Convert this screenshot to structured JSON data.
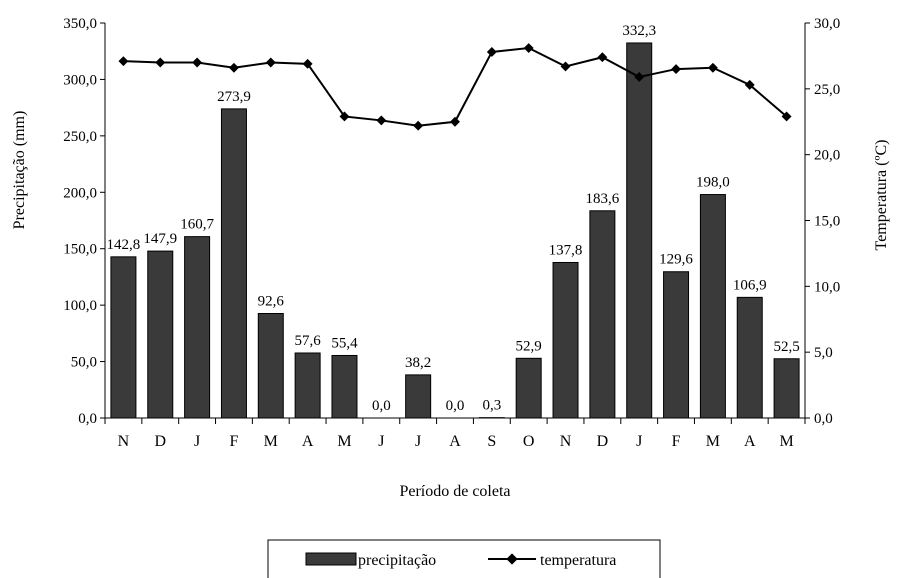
{
  "chart_data": {
    "type": "bar",
    "categories": [
      "N",
      "D",
      "J",
      "F",
      "M",
      "A",
      "M",
      "J",
      "J",
      "A",
      "S",
      "O",
      "N",
      "D",
      "J",
      "F",
      "M",
      "A",
      "M"
    ],
    "series": [
      {
        "name": "precipitação",
        "type": "bar",
        "axis": "left",
        "values": [
          142.8,
          147.9,
          160.7,
          273.9,
          92.6,
          57.6,
          55.4,
          0.0,
          38.2,
          0.0,
          0.3,
          52.9,
          137.8,
          183.6,
          332.3,
          129.6,
          198.0,
          106.9,
          52.5
        ],
        "labels": [
          "142,8",
          "147,9",
          "160,7",
          "273,9",
          "92,6",
          "57,6",
          "55,4",
          "0,0",
          "38,2",
          "0,0",
          "0,3",
          "52,9",
          "137,8",
          "183,6",
          "332,3",
          "129,6",
          "198,0",
          "106,9",
          "52,5"
        ]
      },
      {
        "name": "temperatura",
        "type": "line",
        "axis": "right",
        "values": [
          27.1,
          27.0,
          27.0,
          26.6,
          27.0,
          26.9,
          22.9,
          22.6,
          22.2,
          22.5,
          27.8,
          28.1,
          26.7,
          27.4,
          25.9,
          26.5,
          26.6,
          25.3,
          22.9
        ]
      }
    ],
    "xlabel": "Período de coleta",
    "ylabel": "Precipitação (mm)",
    "y2label": "Temperatura (ºC)",
    "ylim": [
      0,
      350
    ],
    "y2lim": [
      0,
      30
    ],
    "yticks": [
      "0,0",
      "50,0",
      "100,0",
      "150,0",
      "200,0",
      "250,0",
      "300,0",
      "350,0"
    ],
    "y2ticks": [
      "0,0",
      "5,0",
      "10,0",
      "15,0",
      "20,0",
      "25,0",
      "30,0"
    ],
    "grid": false,
    "legend_position": "bottom-center",
    "colors": {
      "bar": "#3a3a3a",
      "line": "#000000"
    }
  },
  "legend": {
    "bar_label": "precipitação",
    "line_label": "temperatura"
  }
}
